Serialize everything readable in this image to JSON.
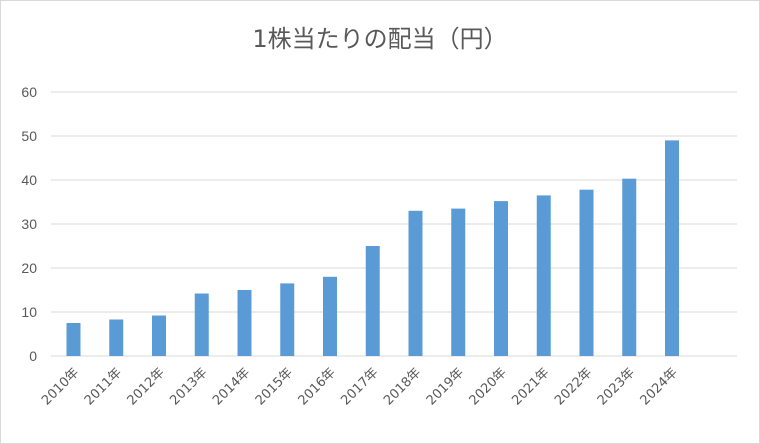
{
  "chart_data": {
    "type": "bar",
    "title": "1株当たりの配当（円）",
    "categories": [
      "2010年",
      "2011年",
      "2012年",
      "2013年",
      "2014年",
      "2015年",
      "2016年",
      "2017年",
      "2018年",
      "2019年",
      "2020年",
      "2021年",
      "2022年",
      "2023年",
      "2024年"
    ],
    "values": [
      7.5,
      8.3,
      9.2,
      14.2,
      15.0,
      16.5,
      18.0,
      25.0,
      33.0,
      33.5,
      35.2,
      36.5,
      37.8,
      40.3,
      49.0
    ],
    "ylim": [
      0,
      60
    ],
    "yticks": [
      0,
      10,
      20,
      30,
      40,
      50,
      60
    ],
    "xlabel": "",
    "ylabel": "",
    "grid": true,
    "legend": "none",
    "bar_color": "#5b9bd5",
    "grid_color": "#d9d9d9"
  }
}
